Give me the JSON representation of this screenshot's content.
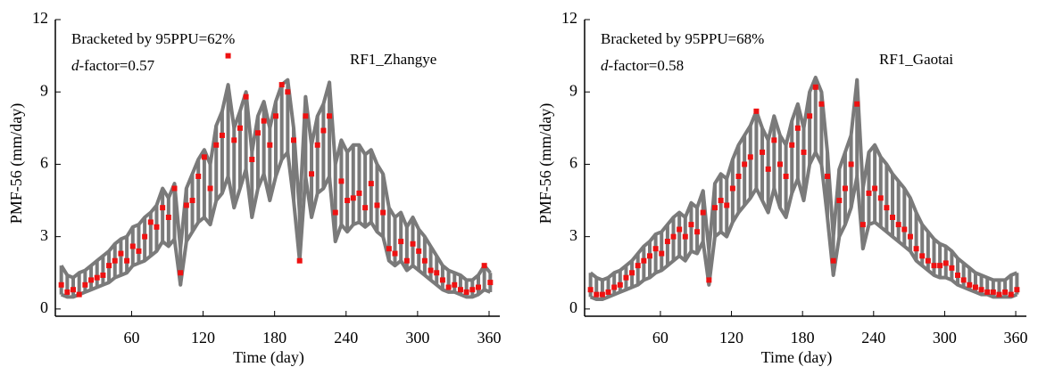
{
  "chart_data": [
    {
      "type": "scatter",
      "title": "RF1_Zhangye",
      "annotation": "Bracketed by 95PPU=62%",
      "d_factor_symbol": "d",
      "d_factor_text": "-factor=0.57",
      "x_label": "Time (day)",
      "y_label": "PMF-56 (mm/day)",
      "xlim": [
        -4,
        369
      ],
      "ylim": [
        -0.3,
        12
      ],
      "xticks": [
        60,
        120,
        180,
        240,
        300,
        360
      ],
      "yticks": [
        0,
        3,
        6,
        9,
        12
      ],
      "grid": false,
      "x": [
        1,
        6,
        11,
        16,
        21,
        26,
        31,
        36,
        41,
        46,
        51,
        56,
        61,
        66,
        71,
        76,
        81,
        86,
        91,
        96,
        101,
        106,
        111,
        116,
        121,
        126,
        131,
        136,
        141,
        146,
        151,
        156,
        161,
        166,
        171,
        176,
        181,
        186,
        191,
        196,
        201,
        206,
        211,
        216,
        221,
        226,
        231,
        236,
        241,
        246,
        251,
        256,
        261,
        266,
        271,
        276,
        281,
        286,
        291,
        296,
        301,
        306,
        311,
        316,
        321,
        326,
        331,
        336,
        341,
        346,
        351,
        356,
        361
      ],
      "band": {
        "color": "#7a7a7a",
        "lower": [
          0.6,
          0.5,
          0.5,
          0.6,
          0.7,
          0.8,
          0.9,
          1.0,
          1.1,
          1.3,
          1.4,
          1.5,
          1.8,
          1.9,
          2.0,
          2.2,
          2.4,
          2.8,
          2.6,
          2.9,
          1.0,
          2.8,
          3.2,
          3.6,
          3.8,
          3.5,
          4.5,
          4.8,
          5.5,
          4.2,
          5.0,
          5.8,
          3.8,
          5.0,
          5.6,
          4.5,
          5.5,
          6.2,
          6.5,
          4.5,
          2.0,
          5.5,
          3.8,
          4.8,
          5.0,
          5.5,
          2.8,
          3.5,
          3.2,
          3.5,
          3.6,
          3.4,
          3.6,
          3.2,
          3.0,
          2.0,
          1.8,
          2.0,
          1.6,
          1.8,
          1.6,
          1.4,
          1.2,
          1.0,
          0.8,
          0.7,
          0.7,
          0.6,
          0.5,
          0.5,
          0.6,
          0.8,
          0.7
        ],
        "upper": [
          1.8,
          1.4,
          1.3,
          1.5,
          1.6,
          1.8,
          2.0,
          2.2,
          2.4,
          2.7,
          2.9,
          3.0,
          3.4,
          3.5,
          3.8,
          4.0,
          4.3,
          5.0,
          4.6,
          5.2,
          2.5,
          5.0,
          5.6,
          6.2,
          6.6,
          6.0,
          7.6,
          8.2,
          9.3,
          7.5,
          8.2,
          9.0,
          6.5,
          8.0,
          8.6,
          7.5,
          8.6,
          9.3,
          9.5,
          7.5,
          4.0,
          8.8,
          6.8,
          8.0,
          8.5,
          9.4,
          6.0,
          7.0,
          6.5,
          6.8,
          6.8,
          6.4,
          6.6,
          6.0,
          5.6,
          4.2,
          3.8,
          4.0,
          3.4,
          3.8,
          3.3,
          3.0,
          2.6,
          2.2,
          1.8,
          1.6,
          1.5,
          1.4,
          1.2,
          1.2,
          1.4,
          1.8,
          1.5
        ]
      },
      "observed": {
        "color": "#ee1111",
        "values": [
          1.0,
          0.7,
          0.8,
          0.6,
          1.0,
          1.2,
          1.3,
          1.4,
          1.8,
          2.0,
          2.3,
          2.0,
          2.6,
          2.4,
          3.0,
          3.6,
          3.4,
          4.2,
          3.8,
          5.0,
          1.5,
          4.3,
          4.5,
          5.5,
          6.3,
          5.0,
          6.8,
          7.2,
          10.5,
          7.0,
          7.5,
          8.8,
          6.2,
          7.3,
          7.8,
          6.8,
          8.0,
          9.3,
          9.0,
          7.0,
          2.0,
          8.0,
          5.6,
          6.8,
          7.4,
          8.0,
          4.0,
          5.3,
          4.5,
          4.6,
          4.8,
          4.2,
          5.2,
          4.3,
          4.0,
          2.5,
          2.3,
          2.8,
          2.0,
          2.7,
          2.4,
          2.0,
          1.6,
          1.5,
          1.2,
          0.9,
          1.0,
          0.8,
          0.7,
          0.8,
          0.9,
          1.8,
          1.1
        ]
      }
    },
    {
      "type": "scatter",
      "title": "RF1_Gaotai",
      "annotation": "Bracketed by 95PPU=68%",
      "d_factor_symbol": "d",
      "d_factor_text": "-factor=0.58",
      "x_label": "Time (day)",
      "y_label": "PMF-56 (mm/day)",
      "xlim": [
        -4,
        369
      ],
      "ylim": [
        -0.3,
        12
      ],
      "xticks": [
        60,
        120,
        180,
        240,
        300,
        360
      ],
      "yticks": [
        0,
        3,
        6,
        9,
        12
      ],
      "grid": false,
      "x": [
        1,
        6,
        11,
        16,
        21,
        26,
        31,
        36,
        41,
        46,
        51,
        56,
        61,
        66,
        71,
        76,
        81,
        86,
        91,
        96,
        101,
        106,
        111,
        116,
        121,
        126,
        131,
        136,
        141,
        146,
        151,
        156,
        161,
        166,
        171,
        176,
        181,
        186,
        191,
        196,
        201,
        206,
        211,
        216,
        221,
        226,
        231,
        236,
        241,
        246,
        251,
        256,
        261,
        266,
        271,
        276,
        281,
        286,
        291,
        296,
        301,
        306,
        311,
        316,
        321,
        326,
        331,
        336,
        341,
        346,
        351,
        356,
        361
      ],
      "band": {
        "color": "#7a7a7a",
        "lower": [
          0.5,
          0.4,
          0.4,
          0.5,
          0.6,
          0.7,
          0.8,
          0.9,
          1.0,
          1.2,
          1.3,
          1.5,
          1.6,
          1.8,
          2.0,
          2.2,
          2.0,
          2.4,
          2.3,
          2.8,
          1.0,
          3.0,
          3.2,
          3.0,
          3.6,
          4.0,
          4.3,
          4.6,
          5.0,
          4.5,
          4.0,
          5.0,
          4.2,
          3.8,
          4.8,
          5.4,
          4.5,
          6.0,
          6.5,
          6.0,
          3.8,
          1.4,
          3.0,
          3.5,
          4.2,
          5.5,
          2.5,
          3.5,
          3.6,
          3.4,
          3.2,
          3.0,
          2.8,
          2.6,
          2.4,
          2.0,
          1.8,
          1.6,
          1.4,
          1.3,
          1.3,
          1.2,
          1.0,
          0.9,
          0.8,
          0.7,
          0.6,
          0.6,
          0.5,
          0.5,
          0.5,
          0.5,
          0.6
        ],
        "upper": [
          1.5,
          1.3,
          1.2,
          1.3,
          1.5,
          1.6,
          1.8,
          2.0,
          2.3,
          2.6,
          2.8,
          3.1,
          3.2,
          3.5,
          3.8,
          4.0,
          3.8,
          4.4,
          4.2,
          4.9,
          2.4,
          5.2,
          5.6,
          5.4,
          6.2,
          6.8,
          7.2,
          7.6,
          8.2,
          7.5,
          7.0,
          8.0,
          7.2,
          6.8,
          7.8,
          8.5,
          7.5,
          9.0,
          9.6,
          9.0,
          6.5,
          3.0,
          5.8,
          6.5,
          7.2,
          9.5,
          5.0,
          6.5,
          6.8,
          6.3,
          6.0,
          5.6,
          5.3,
          5.0,
          4.6,
          4.0,
          3.5,
          3.2,
          2.9,
          2.7,
          2.6,
          2.4,
          2.1,
          1.9,
          1.7,
          1.5,
          1.4,
          1.3,
          1.2,
          1.2,
          1.2,
          1.4,
          1.5
        ]
      },
      "observed": {
        "color": "#ee1111",
        "values": [
          0.8,
          0.6,
          0.6,
          0.7,
          0.9,
          1.0,
          1.3,
          1.5,
          1.8,
          2.0,
          2.2,
          2.5,
          2.3,
          2.8,
          3.0,
          3.3,
          3.0,
          3.5,
          3.2,
          4.0,
          1.2,
          4.2,
          4.5,
          4.3,
          5.0,
          5.5,
          6.0,
          6.3,
          8.2,
          6.5,
          5.8,
          7.0,
          6.0,
          5.5,
          6.8,
          7.5,
          6.5,
          8.0,
          9.2,
          8.5,
          5.5,
          2.0,
          4.5,
          5.0,
          6.0,
          8.5,
          3.5,
          4.8,
          5.0,
          4.6,
          4.2,
          3.8,
          3.5,
          3.3,
          3.0,
          2.5,
          2.2,
          2.0,
          1.8,
          1.8,
          1.9,
          1.7,
          1.4,
          1.2,
          1.0,
          0.9,
          0.8,
          0.7,
          0.7,
          0.6,
          0.7,
          0.6,
          0.8
        ]
      }
    }
  ]
}
